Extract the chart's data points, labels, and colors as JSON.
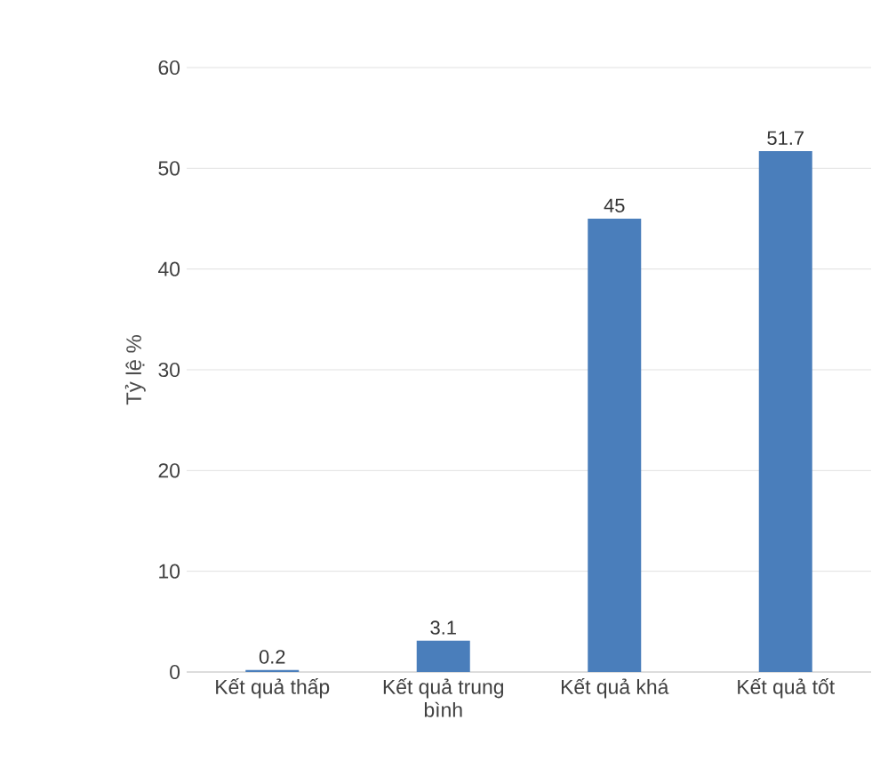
{
  "chart_data": {
    "type": "bar",
    "ylabel": "Tỷ lệ %",
    "categories": [
      "Kết quả thấp",
      "Kết quả trung bình",
      "Kết quả khá",
      "Kết quả tốt"
    ],
    "values": [
      0.2,
      3.1,
      45,
      51.7
    ],
    "color": "#4a7ebb",
    "ylim": [
      0,
      60
    ],
    "yticks": [
      0,
      10,
      20,
      30,
      40,
      50,
      60
    ],
    "grid": "y",
    "data_labels": true
  }
}
